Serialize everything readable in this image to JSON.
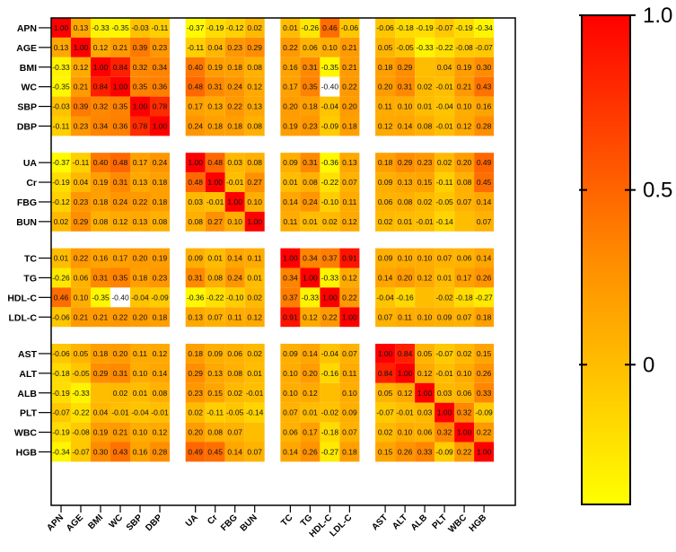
{
  "chart_data": {
    "type": "heatmap",
    "title": "",
    "variables": [
      "APN",
      "AGE",
      "BMI",
      "WC",
      "SBP",
      "DBP",
      "UA",
      "Cr",
      "FBG",
      "BUN",
      "TC",
      "TG",
      "HDL-C",
      "LDL-C",
      "AST",
      "ALT",
      "ALB",
      "PLT",
      "WBC",
      "HGB"
    ],
    "groups": [
      [
        0,
        5
      ],
      [
        6,
        9
      ],
      [
        10,
        13
      ],
      [
        14,
        19
      ]
    ],
    "values": [
      [
        1.0,
        0.13,
        -0.33,
        -0.35,
        -0.03,
        -0.11,
        -0.37,
        -0.19,
        -0.12,
        0.02,
        0.01,
        -0.26,
        0.46,
        -0.06,
        -0.06,
        -0.18,
        -0.19,
        -0.07,
        -0.19,
        -0.34
      ],
      [
        0.13,
        1.0,
        0.12,
        0.21,
        0.39,
        0.23,
        -0.11,
        0.04,
        0.23,
        0.29,
        0.22,
        0.06,
        0.1,
        0.21,
        0.05,
        -0.05,
        -0.33,
        -0.22,
        -0.08,
        -0.07
      ],
      [
        -0.33,
        0.12,
        1.0,
        0.84,
        0.32,
        0.34,
        0.4,
        0.19,
        0.18,
        0.08,
        0.16,
        0.31,
        -0.35,
        0.21,
        0.18,
        0.29,
        null,
        0.04,
        0.19,
        0.3
      ],
      [
        -0.35,
        0.21,
        0.84,
        1.0,
        0.35,
        0.36,
        0.48,
        0.31,
        0.24,
        0.12,
        0.17,
        0.35,
        -0.4,
        0.22,
        0.2,
        0.31,
        0.02,
        -0.01,
        0.21,
        0.43
      ],
      [
        -0.03,
        0.39,
        0.32,
        0.35,
        1.0,
        0.78,
        0.17,
        0.13,
        0.22,
        0.13,
        0.2,
        0.18,
        -0.04,
        0.2,
        0.11,
        0.1,
        0.01,
        -0.04,
        0.1,
        0.16
      ],
      [
        -0.11,
        0.23,
        0.34,
        0.36,
        0.78,
        1.0,
        0.24,
        0.18,
        0.18,
        0.08,
        0.19,
        0.23,
        -0.09,
        0.18,
        0.12,
        0.14,
        0.08,
        -0.01,
        0.12,
        0.28
      ],
      [
        -0.37,
        -0.11,
        0.4,
        0.48,
        0.17,
        0.24,
        1.0,
        0.48,
        0.03,
        0.08,
        0.09,
        0.31,
        -0.36,
        0.13,
        0.18,
        0.29,
        0.23,
        0.02,
        0.2,
        0.49
      ],
      [
        -0.19,
        0.04,
        0.19,
        0.31,
        0.13,
        0.18,
        0.48,
        1.0,
        -0.01,
        0.27,
        0.01,
        0.08,
        -0.22,
        0.07,
        0.09,
        0.13,
        0.15,
        -0.11,
        0.08,
        0.45
      ],
      [
        -0.12,
        0.23,
        0.18,
        0.24,
        0.22,
        0.18,
        0.03,
        -0.01,
        1.0,
        0.1,
        0.14,
        0.24,
        -0.1,
        0.11,
        0.06,
        0.08,
        0.02,
        -0.05,
        0.07,
        0.14
      ],
      [
        0.02,
        0.29,
        0.08,
        0.12,
        0.13,
        0.08,
        0.08,
        0.27,
        0.1,
        1.0,
        0.11,
        0.01,
        0.02,
        0.12,
        0.02,
        0.01,
        -0.01,
        -0.14,
        null,
        0.07
      ],
      [
        0.01,
        0.22,
        0.16,
        0.17,
        0.2,
        0.19,
        0.09,
        0.01,
        0.14,
        0.11,
        1.0,
        0.34,
        0.37,
        0.91,
        0.09,
        0.1,
        0.1,
        0.07,
        0.06,
        0.14
      ],
      [
        -0.26,
        0.06,
        0.31,
        0.35,
        0.18,
        0.23,
        0.31,
        0.08,
        0.24,
        0.01,
        0.34,
        1.0,
        -0.33,
        0.12,
        0.14,
        0.2,
        0.12,
        0.01,
        0.17,
        0.26
      ],
      [
        0.46,
        0.1,
        -0.35,
        -0.4,
        -0.04,
        -0.09,
        -0.36,
        -0.22,
        -0.1,
        0.02,
        0.37,
        -0.33,
        1.0,
        0.22,
        -0.04,
        -0.16,
        null,
        -0.02,
        -0.18,
        -0.27
      ],
      [
        -0.06,
        0.21,
        0.21,
        0.22,
        0.2,
        0.18,
        0.13,
        0.07,
        0.11,
        0.12,
        0.91,
        0.12,
        0.22,
        1.0,
        0.07,
        0.11,
        0.1,
        0.09,
        0.07,
        0.18
      ],
      [
        -0.06,
        0.05,
        0.18,
        0.2,
        0.11,
        0.12,
        0.18,
        0.09,
        0.06,
        0.02,
        0.09,
        0.14,
        -0.04,
        0.07,
        1.0,
        0.84,
        0.05,
        -0.07,
        0.02,
        0.15
      ],
      [
        -0.18,
        -0.05,
        0.29,
        0.31,
        0.1,
        0.14,
        0.29,
        0.13,
        0.08,
        0.01,
        0.1,
        0.2,
        -0.16,
        0.11,
        0.84,
        1.0,
        0.12,
        -0.01,
        0.1,
        0.26
      ],
      [
        -0.19,
        -0.33,
        null,
        0.02,
        0.01,
        0.08,
        0.23,
        0.15,
        0.02,
        -0.01,
        0.1,
        0.12,
        null,
        0.1,
        0.05,
        0.12,
        1.0,
        0.03,
        0.06,
        0.33
      ],
      [
        -0.07,
        -0.22,
        0.04,
        -0.01,
        -0.04,
        -0.01,
        0.02,
        -0.11,
        -0.05,
        -0.14,
        0.07,
        0.01,
        -0.02,
        0.09,
        -0.07,
        -0.01,
        0.03,
        1.0,
        0.32,
        -0.09
      ],
      [
        -0.19,
        -0.08,
        0.19,
        0.21,
        0.1,
        0.12,
        0.2,
        0.08,
        0.07,
        null,
        0.06,
        0.17,
        -0.18,
        0.07,
        0.02,
        0.1,
        0.06,
        0.32,
        1.0,
        0.22
      ],
      [
        -0.34,
        -0.07,
        0.3,
        0.43,
        0.16,
        0.28,
        0.49,
        0.45,
        0.14,
        0.07,
        0.14,
        0.26,
        -0.27,
        0.18,
        0.15,
        0.26,
        0.33,
        -0.09,
        0.22,
        1.0
      ]
    ],
    "colorbar": {
      "min": -0.4,
      "max": 1.0,
      "ticks": [
        0,
        0.5,
        1.0
      ],
      "tick_labels": [
        "0",
        "0.5",
        "1.0"
      ],
      "colors": [
        "#ffff00",
        "#ff8c00",
        "#ff0000"
      ]
    },
    "highlight_color": "#ffffff"
  }
}
